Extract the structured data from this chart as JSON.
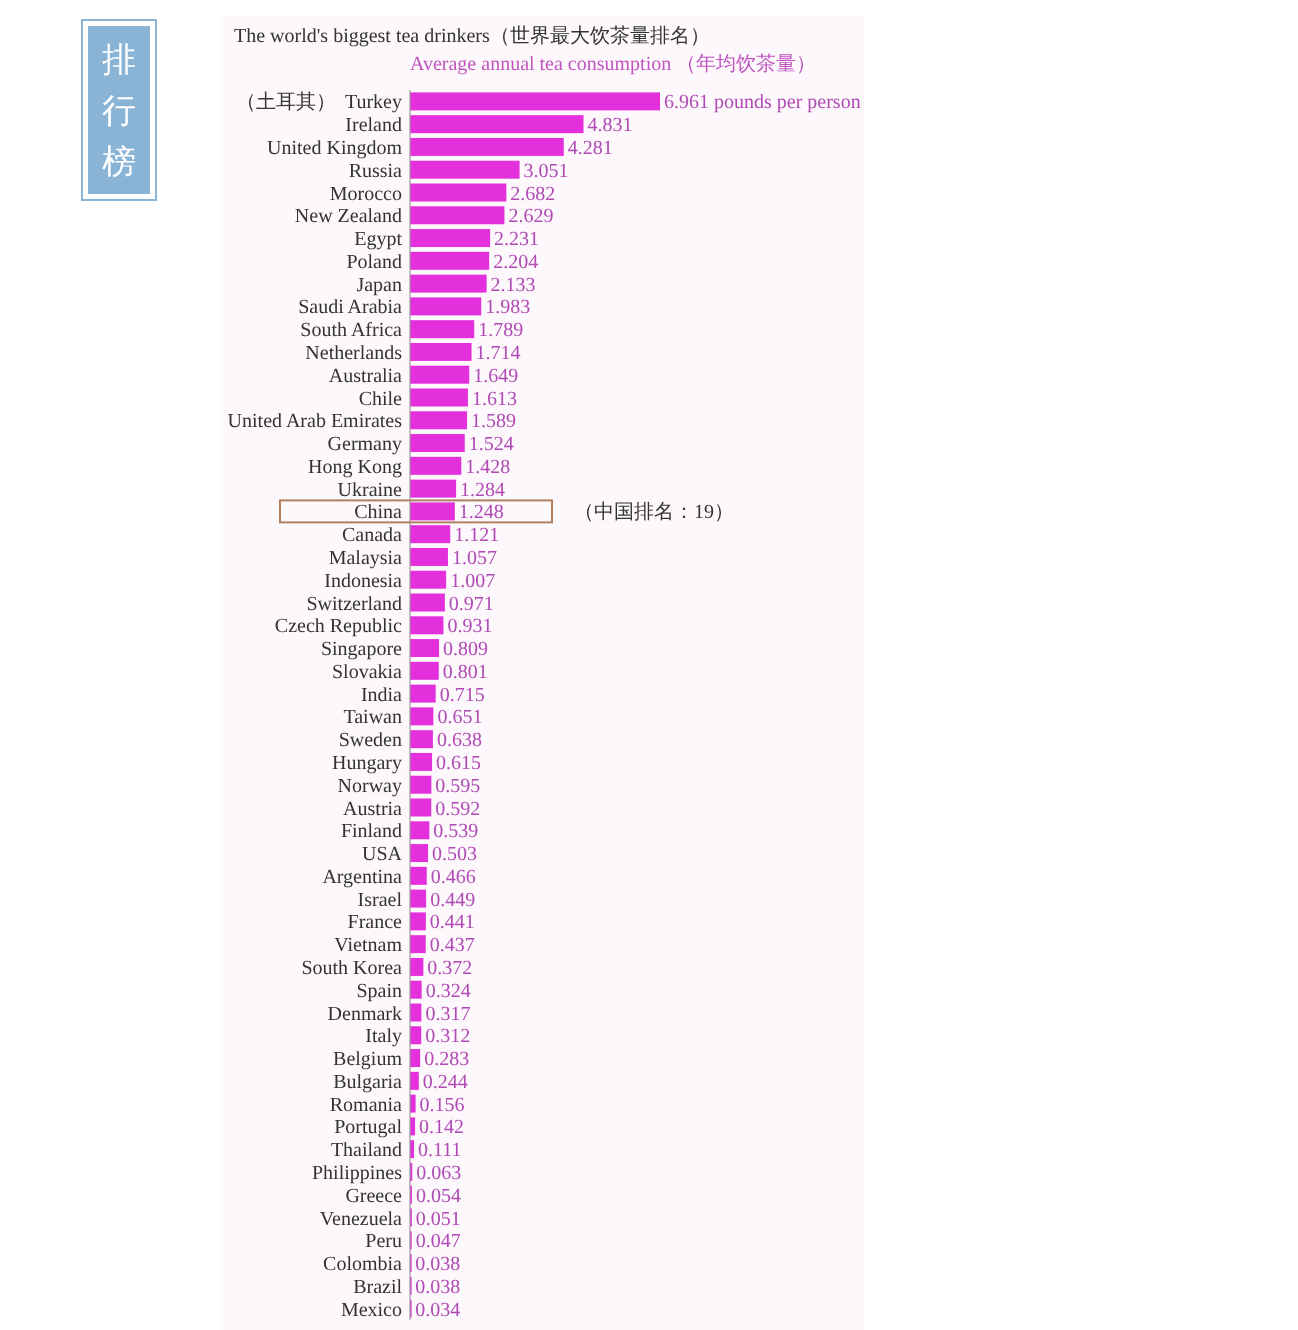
{
  "chart_data": {
    "type": "bar",
    "orientation": "horizontal",
    "title": "The world's biggest tea drinkers（世界最大饮茶量排名）",
    "subtitle": "Average annual tea consumption （年均饮茶量）",
    "color": "#e430dc",
    "categories": [
      "Turkey",
      "Ireland",
      "United Kingdom",
      "Russia",
      "Morocco",
      "New Zealand",
      "Egypt",
      "Poland",
      "Japan",
      "Saudi Arabia",
      "South Africa",
      "Netherlands",
      "Australia",
      "Chile",
      "United Arab Emirates",
      "Germany",
      "Hong Kong",
      "Ukraine",
      "China",
      "Canada",
      "Malaysia",
      "Indonesia",
      "Switzerland",
      "Czech Republic",
      "Singapore",
      "Slovakia",
      "India",
      "Taiwan",
      "Sweden",
      "Hungary",
      "Norway",
      "Austria",
      "Finland",
      "USA",
      "Argentina",
      "Israel",
      "France",
      "Vietnam",
      "South Korea",
      "Spain",
      "Denmark",
      "Italy",
      "Belgium",
      "Bulgaria",
      "Romania",
      "Portugal",
      "Thailand",
      "Philippines",
      "Greece",
      "Venezuela",
      "Peru",
      "Colombia",
      "Brazil",
      "Mexico"
    ],
    "values": [
      6.961,
      4.831,
      4.281,
      3.051,
      2.682,
      2.629,
      2.231,
      2.204,
      2.133,
      1.983,
      1.789,
      1.714,
      1.649,
      1.613,
      1.589,
      1.524,
      1.428,
      1.284,
      1.248,
      1.121,
      1.057,
      1.007,
      0.971,
      0.931,
      0.809,
      0.801,
      0.715,
      0.651,
      0.638,
      0.615,
      0.595,
      0.592,
      0.539,
      0.503,
      0.466,
      0.449,
      0.441,
      0.437,
      0.372,
      0.324,
      0.317,
      0.312,
      0.283,
      0.244,
      0.156,
      0.142,
      0.111,
      0.063,
      0.054,
      0.051,
      0.047,
      0.038,
      0.038,
      0.034
    ],
    "value_labels": [
      "6.961 pounds per person",
      "4.831",
      "4.281",
      "3.051",
      "2.682",
      "2.629",
      "2.231",
      "2.204",
      "2.133",
      "1.983",
      "1.789",
      "1.714",
      "1.649",
      "1.613",
      "1.589",
      "1.524",
      "1.428",
      "1.284",
      "1.248",
      "1.121",
      "1.057",
      "1.007",
      "0.971",
      "0.931",
      "0.809",
      "0.801",
      "0.715",
      "0.651",
      "0.638",
      "0.615",
      "0.595",
      "0.592",
      "0.539",
      "0.503",
      "0.466",
      "0.449",
      "0.441",
      "0.437",
      "0.372",
      "0.324",
      "0.317",
      "0.312",
      "0.283",
      "0.244",
      "0.156",
      "0.142",
      "0.111",
      "0.063",
      "0.054",
      "0.051",
      "0.047",
      "0.038",
      "0.038",
      "0.034"
    ],
    "annotations": [
      "排行榜",
      "（土耳其）",
      "（中国排名：19）"
    ]
  }
}
